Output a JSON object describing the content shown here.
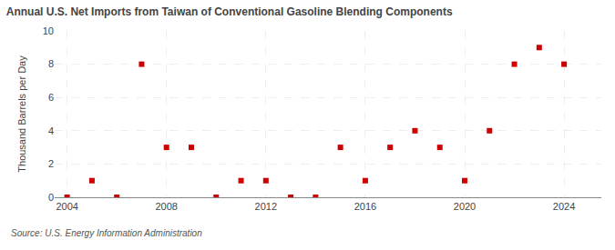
{
  "chart_data": {
    "type": "scatter",
    "title": "Annual U.S. Net Imports from Taiwan of Conventional Gasoline Blending Components",
    "y_label": "Thousand Barrels per Day",
    "annotations": [
      "Source: U.S. Energy Information Administration"
    ],
    "x": [
      2004,
      2005,
      2006,
      2007,
      2008,
      2009,
      2010,
      2011,
      2012,
      2013,
      2014,
      2015,
      2016,
      2017,
      2018,
      2019,
      2020,
      2021,
      2022,
      2023,
      2024
    ],
    "values": [
      0,
      1,
      0,
      8,
      3,
      3,
      0,
      1,
      1,
      0,
      0,
      3,
      1,
      3,
      4,
      3,
      1,
      4,
      8,
      9,
      8
    ],
    "color": "#cc0000",
    "marker": "square",
    "xlim": [
      2003.5,
      2025.5
    ],
    "ylim": [
      0,
      10
    ],
    "xticks": [
      2004,
      2008,
      2012,
      2016,
      2020,
      2024
    ],
    "yticks": [
      0,
      2,
      4,
      6,
      8,
      10
    ],
    "grid": true
  }
}
